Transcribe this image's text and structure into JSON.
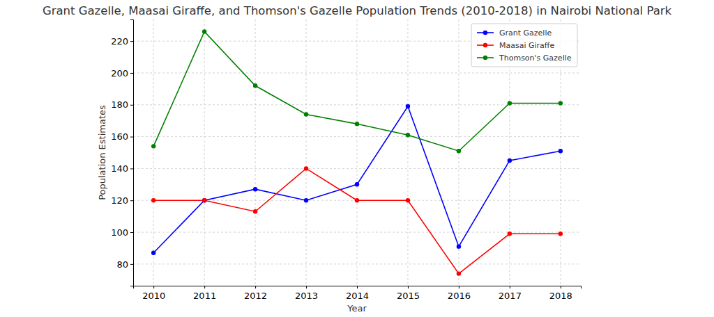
{
  "chart_data": {
    "type": "line",
    "title": "Grant Gazelle, Maasai Giraffe, and Thomson's Gazelle Population Trends (2010-2018) in Nairobi National Park",
    "x_label": "Year",
    "y_label": "Population Estimates",
    "x": [
      2010,
      2011,
      2012,
      2013,
      2014,
      2015,
      2016,
      2017,
      2018
    ],
    "series": [
      {
        "name": "Grant Gazelle",
        "color": "#0000ff",
        "marker": "circle",
        "line_style": "solid",
        "values": [
          87,
          120,
          127,
          120,
          130,
          179,
          91,
          145,
          151
        ]
      },
      {
        "name": "Maasai Giraffe",
        "color": "#ff0000",
        "marker": "circle",
        "line_style": "solid",
        "values": [
          120,
          120,
          113,
          140,
          120,
          120,
          74,
          99,
          99
        ]
      },
      {
        "name": "Thomson's Gazelle",
        "color": "#008000",
        "marker": "circle",
        "line_style": "solid",
        "values": [
          154,
          226,
          192,
          174,
          168,
          161,
          151,
          181,
          181
        ]
      }
    ],
    "xlim": [
      2009.6,
      2018.4
    ],
    "xticks": [
      2010,
      2011,
      2012,
      2013,
      2014,
      2015,
      2016,
      2017,
      2018
    ],
    "ylim": [
      66.4,
      233.6
    ],
    "yticks": [
      80,
      100,
      120,
      140,
      160,
      180,
      200,
      220
    ],
    "grid": true,
    "legend": "upper right"
  }
}
